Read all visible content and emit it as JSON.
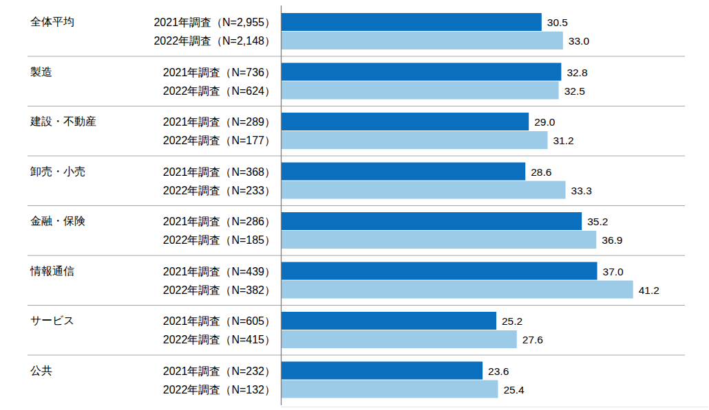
{
  "chart_data": {
    "type": "bar",
    "orientation": "horizontal",
    "categories": [
      "全体平均",
      "製造",
      "建設・不動産",
      "卸売・小売",
      "金融・保険",
      "情報通信",
      "サービス",
      "公共"
    ],
    "series": [
      {
        "color": "#0b6fbf",
        "bar_labels": [
          "2021年調査（N=2,955）",
          "2021年調査（N=736）",
          "2021年調査（N=289）",
          "2021年調査（N=368）",
          "2021年調査（N=286）",
          "2021年調査（N=439）",
          "2021年調査（N=605）",
          "2021年調査（N=232）"
        ],
        "values": [
          30.5,
          32.8,
          29.0,
          28.6,
          35.2,
          37.0,
          25.2,
          23.6
        ],
        "value_labels": [
          "30.5",
          "32.8",
          "29.0",
          "28.6",
          "35.2",
          "37.0",
          "25.2",
          "23.6"
        ]
      },
      {
        "color": "#9ccbe8",
        "bar_labels": [
          "2022年調査（N=2,148）",
          "2022年調査（N=624）",
          "2022年調査（N=177）",
          "2022年調査（N=233）",
          "2022年調査（N=185）",
          "2022年調査（N=382）",
          "2022年調査（N=415）",
          "2022年調査（N=132）"
        ],
        "values": [
          33.0,
          32.5,
          31.2,
          33.3,
          36.9,
          41.2,
          27.6,
          25.4
        ],
        "value_labels": [
          "33.0",
          "32.5",
          "31.2",
          "33.3",
          "36.9",
          "41.2",
          "27.6",
          "25.4"
        ]
      }
    ],
    "xlim": [
      0,
      50
    ],
    "tick_labels": false,
    "data_labels": true,
    "grid": false
  }
}
